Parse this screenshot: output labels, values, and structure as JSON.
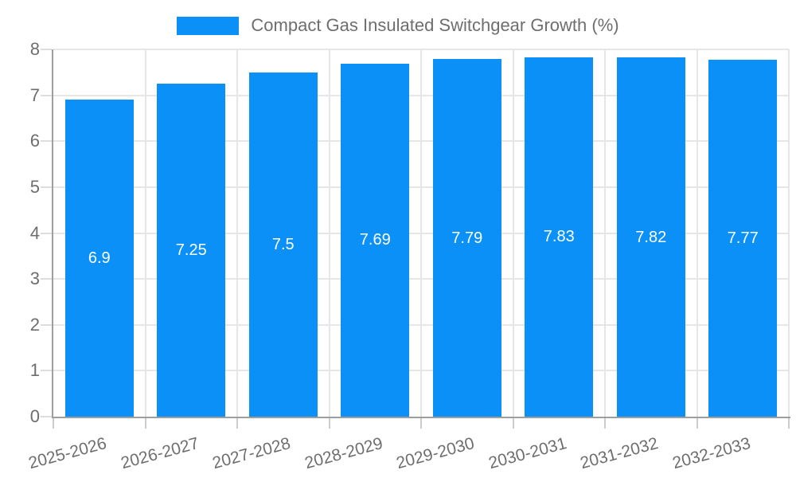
{
  "chart_data": {
    "type": "bar",
    "title": "Compact Gas Insulated Switchgear Growth (%)",
    "legend": {
      "position": "top",
      "label": "Compact Gas Insulated Switchgear Growth (%)"
    },
    "categories": [
      "2025-2026",
      "2026-2027",
      "2027-2028",
      "2028-2029",
      "2029-2030",
      "2030-2031",
      "2031-2032",
      "2032-2033"
    ],
    "values": [
      6.9,
      7.25,
      7.5,
      7.69,
      7.79,
      7.83,
      7.82,
      7.77
    ],
    "value_labels": [
      "6.9",
      "7.25",
      "7.5",
      "7.69",
      "7.79",
      "7.83",
      "7.82",
      "7.77"
    ],
    "xlabel": "",
    "ylabel": "",
    "ylim": [
      0,
      8
    ],
    "y_ticks": [
      0,
      1,
      2,
      3,
      4,
      5,
      6,
      7,
      8
    ],
    "x_tick_rotation_deg": -15,
    "grid": true,
    "colors": {
      "bar": "#0b90f8",
      "axis_text": "#6e6e6e",
      "grid_line": "#e6e6e6",
      "axis_line": "#9e9e9e",
      "value_label": "#ffffff",
      "background": "#ffffff"
    }
  }
}
